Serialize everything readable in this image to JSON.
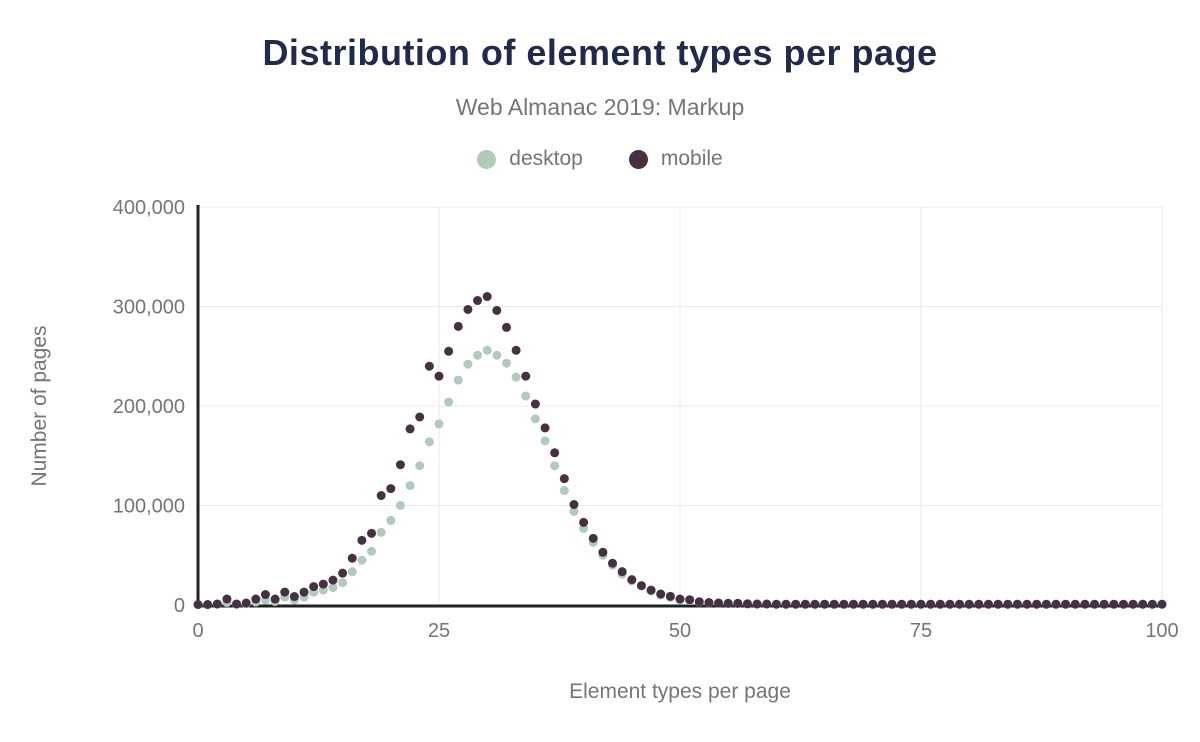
{
  "card": {
    "title": "Distribution of element types per page",
    "subtitle": "Web Almanac 2019: Markup"
  },
  "legend": {
    "items": [
      {
        "label": "desktop",
        "color": "#aecbbb"
      },
      {
        "label": "mobile",
        "color": "#453142"
      }
    ]
  },
  "colors": {
    "title_text": "#202b4b",
    "muted_text": "#757575",
    "axis_line": "#212121",
    "gridline": "#e9e9e9",
    "background": "#ffffff",
    "desktop_series": "#aecbbb",
    "mobile_series": "#453142"
  },
  "chart_data": {
    "type": "scatter",
    "title": "Distribution of element types per page",
    "subtitle": "Web Almanac 2019: Markup",
    "xlabel": "Element types per page",
    "ylabel": "Number of pages",
    "xlim": [
      0,
      100
    ],
    "ylim": [
      0,
      400000
    ],
    "grid": true,
    "legend_position": "top",
    "point_shape": "circle",
    "x_ticks": [
      "0",
      "25",
      "50",
      "75",
      "100"
    ],
    "x_tick_values": [
      0,
      25,
      50,
      75,
      100
    ],
    "y_ticks": [
      "400,000",
      "300,000",
      "200,000",
      "100,000",
      "0"
    ],
    "y_tick_values": [
      400000,
      300000,
      200000,
      100000,
      0
    ],
    "x": [
      0,
      1,
      2,
      3,
      4,
      5,
      6,
      7,
      8,
      9,
      10,
      11,
      12,
      13,
      14,
      15,
      16,
      17,
      18,
      19,
      20,
      21,
      22,
      23,
      24,
      25,
      26,
      27,
      28,
      29,
      30,
      31,
      32,
      33,
      34,
      35,
      36,
      37,
      38,
      39,
      40,
      41,
      42,
      43,
      44,
      45,
      46,
      47,
      48,
      49,
      50,
      51,
      52,
      53,
      54,
      55,
      56,
      57,
      58,
      59,
      60,
      61,
      62,
      63,
      64,
      65,
      66,
      67,
      68,
      69,
      70,
      71,
      72,
      73,
      74,
      75,
      76,
      77,
      78,
      79,
      80,
      81,
      82,
      83,
      84,
      85,
      86,
      87,
      88,
      89,
      90,
      91,
      92,
      93,
      94,
      95,
      96,
      97,
      98,
      99,
      100
    ],
    "series": [
      {
        "name": "desktop",
        "color": "#aecbbb",
        "values": [
          300,
          300,
          700,
          2500,
          700,
          1200,
          3000,
          5000,
          3500,
          8000,
          5000,
          8000,
          13000,
          15000,
          17500,
          22500,
          33500,
          45000,
          54000,
          73000,
          85000,
          100000,
          120000,
          140000,
          164000,
          182000,
          204000,
          226000,
          242000,
          251000,
          256000,
          251000,
          243000,
          229000,
          210000,
          187000,
          165000,
          140000,
          115000,
          94000,
          77000,
          63000,
          50000,
          40000,
          31000,
          24000,
          19000,
          14000,
          10000,
          7700,
          5300,
          4500,
          3000,
          2200,
          1800,
          1500,
          1400,
          1000,
          900,
          900,
          700,
          700,
          700,
          700,
          700,
          700,
          700,
          700,
          700,
          700,
          700,
          700,
          700,
          700,
          700,
          700,
          700,
          700,
          700,
          700,
          700,
          700,
          700,
          700,
          700,
          700,
          700,
          700,
          700,
          700,
          700,
          700,
          700,
          700,
          700,
          700,
          700,
          700,
          700,
          700,
          700
        ]
      },
      {
        "name": "mobile",
        "color": "#453142",
        "values": [
          500,
          500,
          1000,
          6000,
          1000,
          2000,
          6000,
          10500,
          6000,
          13000,
          8500,
          13000,
          18500,
          21000,
          25000,
          32000,
          47000,
          65000,
          72000,
          110000,
          117000,
          141000,
          177000,
          189000,
          240000,
          230000,
          255000,
          280000,
          297000,
          306000,
          310000,
          296000,
          279000,
          256000,
          230000,
          202000,
          178000,
          153000,
          127000,
          101000,
          83000,
          67000,
          53000,
          42000,
          33500,
          25500,
          19500,
          15000,
          11000,
          8700,
          6000,
          5300,
          3300,
          2500,
          2000,
          1700,
          1700,
          1200,
          1000,
          1000,
          800,
          800,
          800,
          800,
          800,
          800,
          800,
          800,
          800,
          800,
          800,
          800,
          800,
          800,
          800,
          800,
          800,
          800,
          800,
          800,
          800,
          800,
          800,
          800,
          800,
          800,
          800,
          800,
          800,
          800,
          800,
          800,
          800,
          800,
          800,
          800,
          800,
          800,
          800,
          800,
          800
        ]
      }
    ]
  }
}
